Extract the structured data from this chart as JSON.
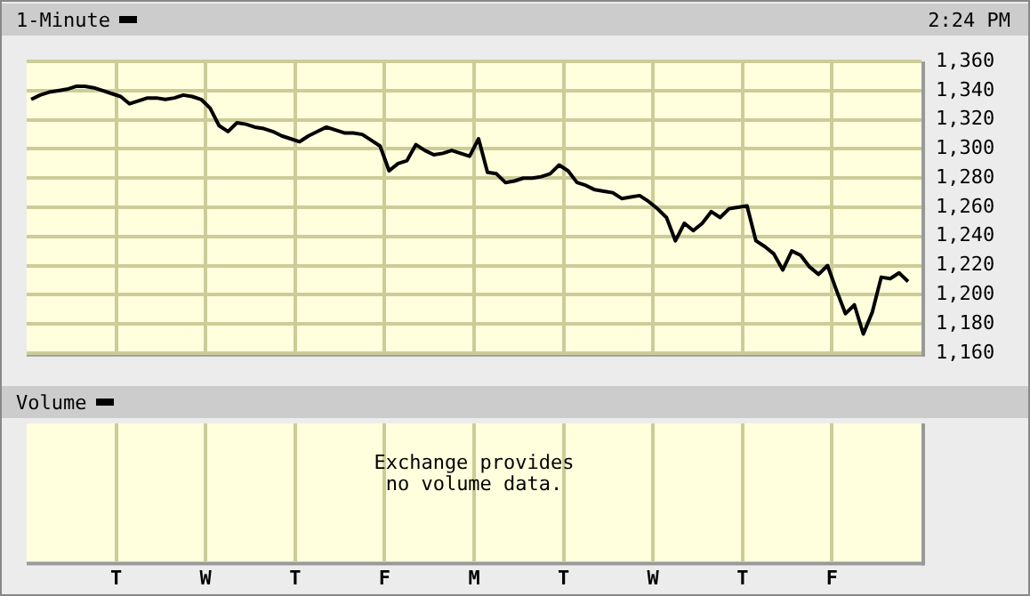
{
  "chart_data": [
    {
      "type": "line",
      "title": "1-Minute",
      "annotations": [
        "2:24 PM"
      ],
      "categories": [
        null,
        null,
        null,
        null,
        null,
        null,
        null,
        null,
        null,
        null,
        null,
        null,
        null,
        null,
        null,
        null,
        null,
        null,
        null,
        null,
        null,
        null,
        null,
        null,
        null,
        null,
        null,
        null,
        null,
        null,
        null,
        null,
        null,
        null,
        null,
        null,
        null,
        null,
        null,
        null,
        null,
        null,
        null,
        null,
        null,
        null,
        null,
        null,
        null,
        null,
        null,
        null,
        null,
        null,
        null,
        null,
        null,
        null,
        null,
        null,
        null,
        null,
        null,
        null,
        null,
        null,
        null,
        null,
        null,
        null,
        null,
        null,
        null,
        null,
        null,
        null,
        null,
        null,
        null,
        null,
        null,
        null,
        null,
        null,
        null,
        null,
        null,
        null,
        null,
        null,
        null,
        null,
        null,
        null,
        null,
        null,
        null,
        null,
        null
      ],
      "series": [
        {
          "color": "#000000",
          "values": [
            1334,
            1337,
            1339,
            1340,
            1341,
            1343,
            1343,
            1342,
            1340,
            1338,
            1336,
            1331,
            1333,
            1335,
            1335,
            1334,
            1335,
            1337,
            1336,
            1334,
            1328,
            1316,
            1312,
            1318,
            1317,
            1315,
            1314,
            1312,
            1309,
            1307,
            1305,
            1309,
            1312,
            1315,
            1313,
            1311,
            1311,
            1310,
            1306,
            1302,
            1285,
            1290,
            1292,
            1303,
            1299,
            1296,
            1297,
            1299,
            1297,
            1295,
            1307,
            1284,
            1283,
            1277,
            1278,
            1280,
            1280,
            1281,
            1283,
            1289,
            1285,
            1277,
            1275,
            1272,
            1271,
            1270,
            1266,
            1267,
            1268,
            1264,
            1259,
            1253,
            1237,
            1249,
            1244,
            1249,
            1257,
            1253,
            1259,
            1260,
            1261,
            1237,
            1233,
            1228,
            1217,
            1230,
            1227,
            1219,
            1214,
            1220,
            1203,
            1187,
            1193,
            1173,
            1188,
            1212,
            1211,
            1215,
            1209
          ]
        }
      ],
      "ylim": [
        1160,
        1360
      ],
      "yticks": [
        {
          "value": 1160,
          "label": "1,160"
        },
        {
          "value": 1180,
          "label": "1,180"
        },
        {
          "value": 1200,
          "label": "1,200"
        },
        {
          "value": 1220,
          "label": "1,220"
        },
        {
          "value": 1240,
          "label": "1,240"
        },
        {
          "value": 1260,
          "label": "1,260"
        },
        {
          "value": 1280,
          "label": "1,280"
        },
        {
          "value": 1300,
          "label": "1,300"
        },
        {
          "value": 1320,
          "label": "1,320"
        },
        {
          "value": 1340,
          "label": "1,340"
        },
        {
          "value": 1360,
          "label": "1,360"
        }
      ],
      "grid": true,
      "legend": false,
      "marker": "none"
    },
    {
      "type": "other",
      "title": "Volume",
      "annotations": [
        "Exchange provides no volume data."
      ],
      "categories": [
        "T",
        "W",
        "T",
        "F",
        "M",
        "T",
        "W",
        "T",
        "F"
      ]
    }
  ]
}
